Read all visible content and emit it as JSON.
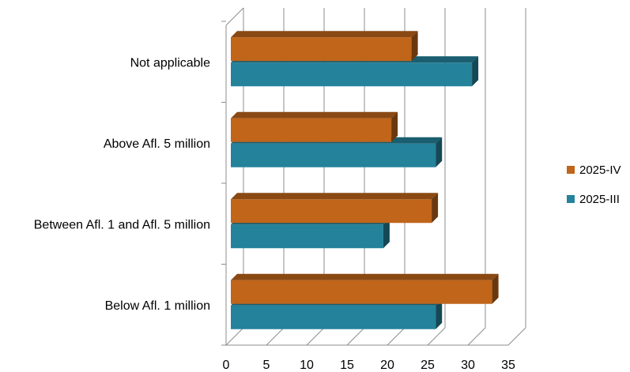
{
  "chart_data": {
    "type": "bar",
    "orientation": "horizontal",
    "style": "3d",
    "categories": [
      "Not applicable",
      "Above Afl. 5 million",
      "Between Afl. 1 and Afl. 5 million",
      "Below Afl. 1 million"
    ],
    "series": [
      {
        "name": "2025-IV",
        "color": "#c0651a",
        "values": [
          23,
          20.5,
          25.5,
          33
        ]
      },
      {
        "name": "2025-III",
        "color": "#24829b",
        "values": [
          30.5,
          26,
          19.5,
          26
        ]
      }
    ],
    "xticks": [
      "0",
      "5",
      "10",
      "15",
      "20",
      "25",
      "30",
      "35"
    ],
    "xlim": [
      0,
      35
    ],
    "grid": true,
    "legend_position": "right"
  }
}
